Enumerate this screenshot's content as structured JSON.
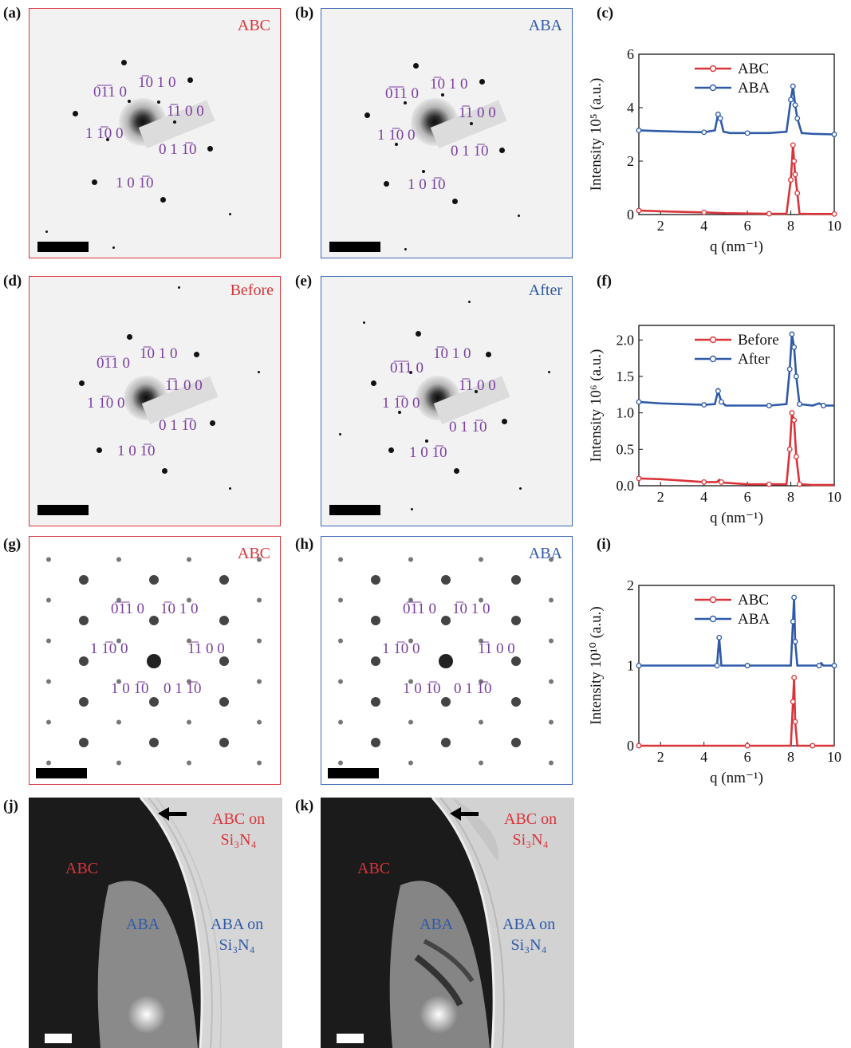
{
  "panels": {
    "a": {
      "label": "(a)",
      "tag": "ABC"
    },
    "b": {
      "label": "(b)",
      "tag": "ABA"
    },
    "c": {
      "label": "(c)"
    },
    "d": {
      "label": "(d)",
      "tag": "Before"
    },
    "e": {
      "label": "(e)",
      "tag": "After"
    },
    "f": {
      "label": "(f)"
    },
    "g": {
      "label": "(g)",
      "tag": "ABC"
    },
    "h": {
      "label": "(h)",
      "tag": "ABA"
    },
    "i": {
      "label": "(i)"
    },
    "j": {
      "label": "(j)",
      "abc": "ABC",
      "aba": "ABA",
      "abc_on_1": "ABC on",
      "aba_on_1": "ABA on",
      "substrate": "Si₃N₄"
    },
    "k": {
      "label": "(k)",
      "abc": "ABC",
      "aba": "ABA",
      "abc_on_1": "ABC on",
      "aba_on_1": "ABA on",
      "substrate": "Si₃N₄"
    }
  },
  "miller": {
    "m0110": "0̅1̅1 0",
    "m1010": "1̅0 1 0",
    "m1100b": "1̅1 0 0",
    "m1100": "1 1̅0 0",
    "m0110b": "0 1 1̅0",
    "m1010b": "1 0 1̅0"
  },
  "chart_data": [
    {
      "type": "line",
      "panel": "c",
      "ylabel": "Intensity 10⁵ (a.u.)",
      "xlabel": "q (nm⁻¹)",
      "xlim": [
        1,
        10
      ],
      "ylim": [
        0,
        6
      ],
      "xticks": [
        2,
        4,
        6,
        8,
        10
      ],
      "yticks": [
        0,
        2,
        4,
        6
      ],
      "legend": "top-center",
      "series": [
        {
          "name": "ABC",
          "color": "#d9343a",
          "x": [
            1,
            2,
            3,
            4,
            5,
            6,
            7,
            7.8,
            8.0,
            8.1,
            8.15,
            8.2,
            8.3,
            8.4,
            9,
            10
          ],
          "y": [
            0.15,
            0.12,
            0.1,
            0.08,
            0.05,
            0.04,
            0.03,
            0.03,
            1.3,
            2.6,
            2.0,
            1.5,
            0.8,
            0.03,
            0.02,
            0.02
          ]
        },
        {
          "name": "ABA",
          "color": "#2e5aa8",
          "x": [
            1,
            2,
            3,
            4,
            4.5,
            4.65,
            4.75,
            4.9,
            5.2,
            6,
            7,
            7.8,
            8.0,
            8.1,
            8.2,
            8.3,
            8.5,
            9,
            10
          ],
          "y": [
            3.15,
            3.12,
            3.1,
            3.08,
            3.15,
            3.75,
            3.6,
            3.1,
            3.05,
            3.05,
            3.05,
            3.1,
            4.3,
            4.8,
            4.1,
            3.6,
            3.05,
            3.02,
            3.0
          ]
        }
      ]
    },
    {
      "type": "line",
      "panel": "f",
      "ylabel": "Intensity 10⁶ (a.u.)",
      "xlabel": "q (nm⁻¹)",
      "xlim": [
        1,
        10
      ],
      "ylim": [
        0,
        2.2
      ],
      "xticks": [
        2,
        4,
        6,
        8,
        10
      ],
      "yticks": [
        0.0,
        0.5,
        1.0,
        1.5,
        2.0
      ],
      "ytick_labels": [
        "0.0",
        "0.5",
        "1.0",
        "1.5",
        "2.0"
      ],
      "legend": "top-center",
      "series": [
        {
          "name": "Before",
          "color": "#d9343a",
          "x": [
            1,
            2,
            3,
            4,
            4.6,
            4.7,
            4.8,
            5,
            6,
            7,
            7.8,
            7.95,
            8.05,
            8.15,
            8.25,
            8.4,
            9,
            10
          ],
          "y": [
            0.1,
            0.09,
            0.07,
            0.05,
            0.05,
            0.08,
            0.05,
            0.04,
            0.02,
            0.02,
            0.02,
            0.5,
            1.0,
            0.9,
            0.4,
            0.02,
            0.01,
            0.01
          ]
        },
        {
          "name": "After",
          "color": "#2e5aa8",
          "x": [
            1,
            2,
            3,
            4,
            4.5,
            4.65,
            4.8,
            5,
            6,
            7,
            7.8,
            7.95,
            8.05,
            8.15,
            8.25,
            8.4,
            9,
            9.3,
            9.5,
            10
          ],
          "y": [
            1.15,
            1.13,
            1.12,
            1.11,
            1.12,
            1.3,
            1.15,
            1.1,
            1.1,
            1.1,
            1.12,
            1.6,
            2.08,
            1.9,
            1.5,
            1.12,
            1.1,
            1.13,
            1.1,
            1.1
          ]
        }
      ]
    },
    {
      "type": "line",
      "panel": "i",
      "ylabel": "Intensity 10¹⁰ (a.u.)",
      "xlabel": "q (nm⁻¹)",
      "xlim": [
        1,
        10
      ],
      "ylim": [
        0,
        2
      ],
      "xticks": [
        2,
        4,
        6,
        8,
        10
      ],
      "yticks": [
        0,
        1,
        2
      ],
      "legend": "top-center",
      "series": [
        {
          "name": "ABC",
          "color": "#d9343a",
          "x": [
            1,
            2,
            4,
            6,
            8.0,
            8.1,
            8.15,
            8.2,
            8.3,
            9,
            10
          ],
          "y": [
            0,
            0,
            0,
            0,
            0,
            0.55,
            0.85,
            0.3,
            0,
            0,
            0
          ]
        },
        {
          "name": "ABA",
          "color": "#2e5aa8",
          "x": [
            1,
            2,
            4,
            4.6,
            4.7,
            4.8,
            6,
            8.0,
            8.1,
            8.15,
            8.2,
            8.3,
            9.3,
            9.4,
            9.5,
            10
          ],
          "y": [
            1,
            1,
            1,
            1,
            1.35,
            1,
            1,
            1,
            1.55,
            1.85,
            1.3,
            1,
            1,
            1.03,
            1,
            1
          ]
        }
      ]
    }
  ]
}
